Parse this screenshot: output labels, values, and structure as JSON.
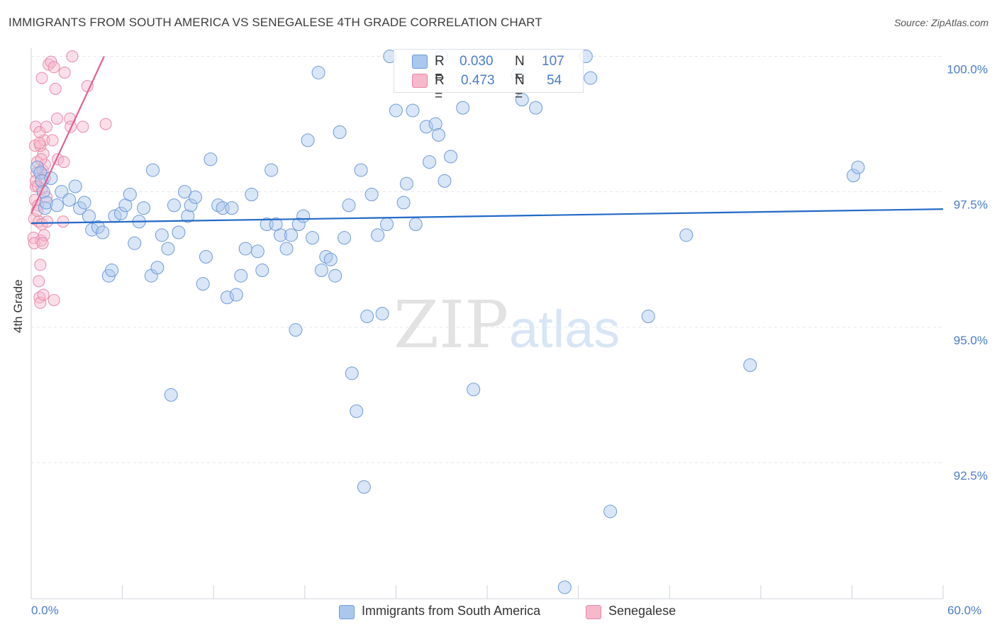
{
  "title": "IMMIGRANTS FROM SOUTH AMERICA VS SENEGALESE 4TH GRADE CORRELATION CHART",
  "source": "Source: ZipAtlas.com",
  "watermark": {
    "zip": "ZIP",
    "atlas": "atlas"
  },
  "legend": {
    "r_label": "R =",
    "n_label": "N =",
    "series1": {
      "r": "0.030",
      "n": "107"
    },
    "series2": {
      "r": "0.473",
      "n": "54"
    }
  },
  "colors": {
    "blue_fill": "#aac8ee",
    "blue_stroke": "#6f9ad8",
    "blue_line": "#2369c8",
    "pink_fill": "#f6b8cb",
    "pink_stroke": "#e88aa8",
    "pink_line": "#e4608f",
    "tick_text": "#4a7cc9",
    "grid": "#e3e6ea"
  },
  "chart_data": {
    "type": "scatter",
    "title": "IMMIGRANTS FROM SOUTH AMERICA VS SENEGALESE 4TH GRADE CORRELATION CHART",
    "xlabel": "",
    "ylabel": "4th Grade",
    "xlim": [
      0,
      60
    ],
    "ylim": [
      90.2,
      100.4
    ],
    "x_tick_labels": [
      "0.0%",
      "60.0%"
    ],
    "y_ticks": [
      100.0,
      97.5,
      95.0,
      92.5
    ],
    "y_tick_labels": [
      "100.0%",
      "97.5%",
      "95.0%",
      "92.5%"
    ],
    "grid": true,
    "legend_position": "bottom",
    "series": [
      {
        "name": "Immigrants from South America",
        "r": 0.03,
        "n": 107,
        "trend": {
          "x": [
            0,
            60
          ],
          "y": [
            96.92,
            97.18
          ]
        },
        "points": [
          [
            0.4,
            97.95
          ],
          [
            0.6,
            97.85
          ],
          [
            0.7,
            97.7
          ],
          [
            0.8,
            97.5
          ],
          [
            0.9,
            97.2
          ],
          [
            1.0,
            97.3
          ],
          [
            1.3,
            97.75
          ],
          [
            1.7,
            97.25
          ],
          [
            2.0,
            97.5
          ],
          [
            2.5,
            97.35
          ],
          [
            2.9,
            97.6
          ],
          [
            3.2,
            97.2
          ],
          [
            3.5,
            97.3
          ],
          [
            3.8,
            97.05
          ],
          [
            4.0,
            96.8
          ],
          [
            4.4,
            96.85
          ],
          [
            4.7,
            96.75
          ],
          [
            5.1,
            95.95
          ],
          [
            5.3,
            96.05
          ],
          [
            5.5,
            97.05
          ],
          [
            5.9,
            97.1
          ],
          [
            6.2,
            97.25
          ],
          [
            6.5,
            97.45
          ],
          [
            6.8,
            96.55
          ],
          [
            7.1,
            96.95
          ],
          [
            7.4,
            97.2
          ],
          [
            7.9,
            95.95
          ],
          [
            8.0,
            97.9
          ],
          [
            8.3,
            96.1
          ],
          [
            8.6,
            96.7
          ],
          [
            9.0,
            96.45
          ],
          [
            9.2,
            93.75
          ],
          [
            9.4,
            97.25
          ],
          [
            9.7,
            96.75
          ],
          [
            10.1,
            97.5
          ],
          [
            10.3,
            97.05
          ],
          [
            10.5,
            97.25
          ],
          [
            10.8,
            97.4
          ],
          [
            11.3,
            95.8
          ],
          [
            11.5,
            96.3
          ],
          [
            11.8,
            98.1
          ],
          [
            12.3,
            97.25
          ],
          [
            12.6,
            97.2
          ],
          [
            12.9,
            95.55
          ],
          [
            13.2,
            97.2
          ],
          [
            13.5,
            95.6
          ],
          [
            13.8,
            95.95
          ],
          [
            14.1,
            96.45
          ],
          [
            14.5,
            97.45
          ],
          [
            14.9,
            96.4
          ],
          [
            15.2,
            96.05
          ],
          [
            15.5,
            96.9
          ],
          [
            15.8,
            97.9
          ],
          [
            16.1,
            96.9
          ],
          [
            16.4,
            96.7
          ],
          [
            16.8,
            96.45
          ],
          [
            17.1,
            96.7
          ],
          [
            17.4,
            94.95
          ],
          [
            17.6,
            96.9
          ],
          [
            17.9,
            97.05
          ],
          [
            18.2,
            98.45
          ],
          [
            18.5,
            96.65
          ],
          [
            18.9,
            99.7
          ],
          [
            19.1,
            96.05
          ],
          [
            19.4,
            96.3
          ],
          [
            19.7,
            96.25
          ],
          [
            20.0,
            95.95
          ],
          [
            20.3,
            98.6
          ],
          [
            20.6,
            96.65
          ],
          [
            20.9,
            97.25
          ],
          [
            21.1,
            94.15
          ],
          [
            21.4,
            93.45
          ],
          [
            21.7,
            97.9
          ],
          [
            21.9,
            92.05
          ],
          [
            22.1,
            95.2
          ],
          [
            22.4,
            97.45
          ],
          [
            22.8,
            96.7
          ],
          [
            23.1,
            95.25
          ],
          [
            23.4,
            96.9
          ],
          [
            23.6,
            100.0
          ],
          [
            24.0,
            99.0
          ],
          [
            24.5,
            97.3
          ],
          [
            24.7,
            97.65
          ],
          [
            25.1,
            99.0
          ],
          [
            25.3,
            96.9
          ],
          [
            26.0,
            98.7
          ],
          [
            26.2,
            98.05
          ],
          [
            26.6,
            98.75
          ],
          [
            26.8,
            98.55
          ],
          [
            27.0,
            100.0
          ],
          [
            27.2,
            97.7
          ],
          [
            27.6,
            98.15
          ],
          [
            28.4,
            99.05
          ],
          [
            29.1,
            93.85
          ],
          [
            32.0,
            99.65
          ],
          [
            32.3,
            99.2
          ],
          [
            33.2,
            99.05
          ],
          [
            35.1,
            90.2
          ],
          [
            36.5,
            100.0
          ],
          [
            36.8,
            99.6
          ],
          [
            38.1,
            91.6
          ],
          [
            40.6,
            95.2
          ],
          [
            43.1,
            96.7
          ],
          [
            47.3,
            94.3
          ],
          [
            54.1,
            97.8
          ],
          [
            54.4,
            97.95
          ]
        ]
      },
      {
        "name": "Senegalese",
        "r": 0.473,
        "n": 54,
        "trend": {
          "x": [
            0,
            4.8
          ],
          "y": [
            97.1,
            100.0
          ]
        },
        "points": [
          [
            0.15,
            96.65
          ],
          [
            0.2,
            97.0
          ],
          [
            0.25,
            97.35
          ],
          [
            0.3,
            97.6
          ],
          [
            0.35,
            97.85
          ],
          [
            0.4,
            98.05
          ],
          [
            0.25,
            98.35
          ],
          [
            0.3,
            98.7
          ],
          [
            0.45,
            97.25
          ],
          [
            0.5,
            96.95
          ],
          [
            0.5,
            95.85
          ],
          [
            0.55,
            95.55
          ],
          [
            0.6,
            95.45
          ],
          [
            0.6,
            96.15
          ],
          [
            0.65,
            96.6
          ],
          [
            0.7,
            96.9
          ],
          [
            0.7,
            97.55
          ],
          [
            0.75,
            97.9
          ],
          [
            0.8,
            98.2
          ],
          [
            0.85,
            98.45
          ],
          [
            0.9,
            98.0
          ],
          [
            0.55,
            98.6
          ],
          [
            0.6,
            98.35
          ],
          [
            0.65,
            98.1
          ],
          [
            0.7,
            99.6
          ],
          [
            0.8,
            95.6
          ],
          [
            0.85,
            96.7
          ],
          [
            1.0,
            98.7
          ],
          [
            1.0,
            97.4
          ],
          [
            1.05,
            96.95
          ],
          [
            1.15,
            99.85
          ],
          [
            1.3,
            99.9
          ],
          [
            1.5,
            95.5
          ],
          [
            1.4,
            98.45
          ],
          [
            1.5,
            99.8
          ],
          [
            1.6,
            99.4
          ],
          [
            1.7,
            98.85
          ],
          [
            1.75,
            98.1
          ],
          [
            2.1,
            96.95
          ],
          [
            2.2,
            99.7
          ],
          [
            2.15,
            98.05
          ],
          [
            2.55,
            98.85
          ],
          [
            2.6,
            98.7
          ],
          [
            2.7,
            100.0
          ],
          [
            3.4,
            98.7
          ],
          [
            3.7,
            99.45
          ],
          [
            4.9,
            98.75
          ],
          [
            0.3,
            97.7
          ],
          [
            0.4,
            97.15
          ],
          [
            0.2,
            96.55
          ],
          [
            0.45,
            97.6
          ],
          [
            0.55,
            98.4
          ],
          [
            0.75,
            96.55
          ],
          [
            0.9,
            97.75
          ]
        ]
      }
    ]
  }
}
